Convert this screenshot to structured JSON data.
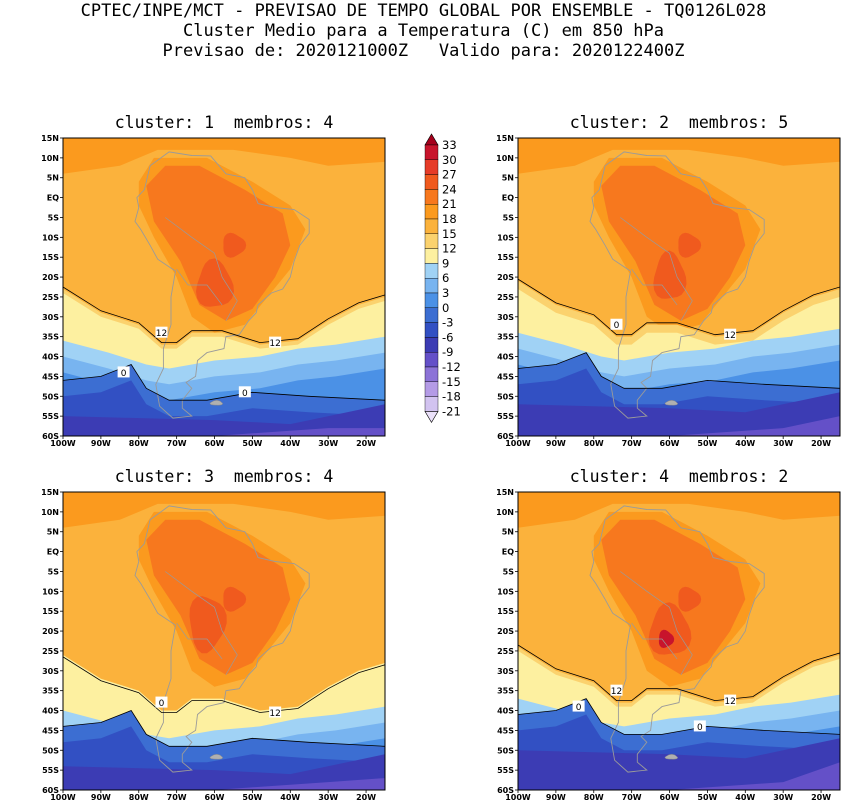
{
  "header": {
    "line1": "CPTEC/INPE/MCT - PREVISAO DE TEMPO GLOBAL POR ENSEMBLE - TQ0126L028",
    "line2": "Cluster Medio para a Temperatura (C) em 850 hPa",
    "line3": "Previsao de: 2020121000Z   Valido para: 2020122400Z"
  },
  "panels": [
    {
      "title": "cluster: 1  membros: 4",
      "contours": [
        "12",
        "12",
        "0",
        "0"
      ]
    },
    {
      "title": "cluster: 2  membros: 5",
      "contours": [
        "12",
        "0"
      ]
    },
    {
      "title": "cluster: 3  membros: 4",
      "contours": [
        "12",
        "0"
      ]
    },
    {
      "title": "cluster: 4  membros: 2",
      "contours": [
        "12",
        "12",
        "0",
        "0"
      ]
    }
  ],
  "axes": {
    "lat_ticks": [
      "15N",
      "10N",
      "5N",
      "EQ",
      "5S",
      "10S",
      "15S",
      "20S",
      "25S",
      "30S",
      "35S",
      "40S",
      "45S",
      "50S",
      "55S",
      "60S"
    ],
    "lon_ticks": [
      "100W",
      "90W",
      "80W",
      "70W",
      "60W",
      "50W",
      "40W",
      "30W",
      "20W"
    ]
  },
  "colorbar": {
    "levels": [
      "33",
      "30",
      "27",
      "24",
      "21",
      "18",
      "15",
      "12",
      "9",
      "6",
      "3",
      "0",
      "-3",
      "-6",
      "-9",
      "-12",
      "-15",
      "-18",
      "-21"
    ],
    "colors": [
      "#a5001c",
      "#c8142c",
      "#e63c28",
      "#f05a1e",
      "#f7781e",
      "#fb9a1e",
      "#fbb23c",
      "#fbd26e",
      "#fdf0a0",
      "#a0d2f5",
      "#78b4f0",
      "#4b91e6",
      "#3c6ed2",
      "#3250c3",
      "#3c3cb4",
      "#6450c8",
      "#8c73d7",
      "#b49be6",
      "#d2c3f0",
      "#ebe1fa"
    ]
  }
}
